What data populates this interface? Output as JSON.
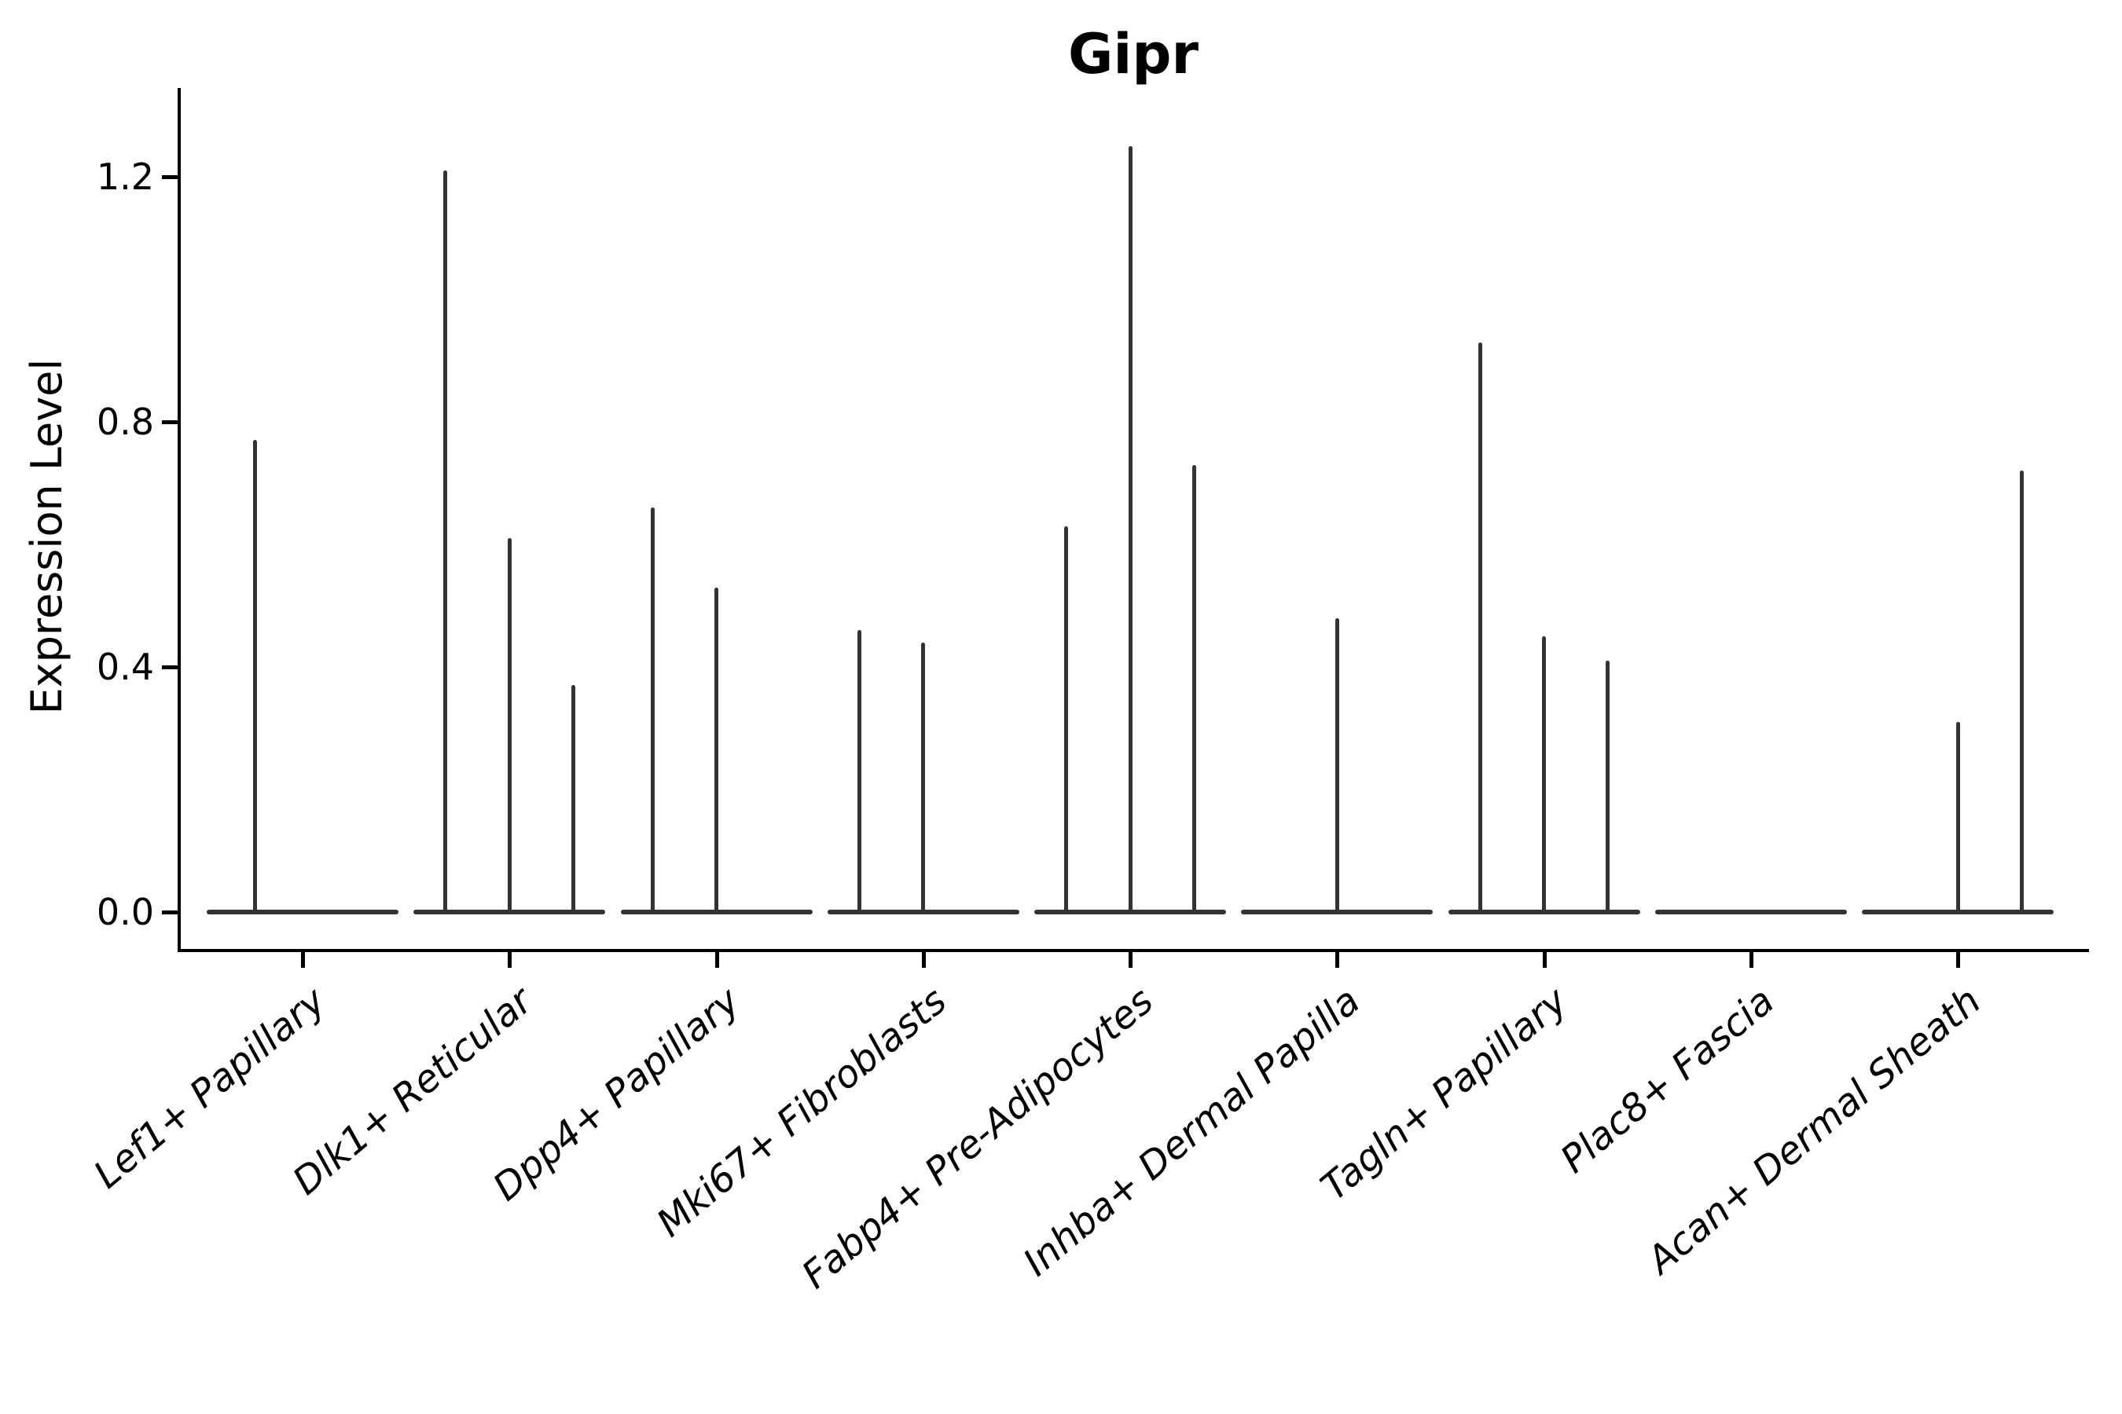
{
  "title": "Gipr",
  "ylabel": "Expression Level",
  "chart_data": {
    "type": "violin",
    "title": "Gipr",
    "xlabel": "",
    "ylabel": "Expression Level",
    "ylim": [
      0,
      1.35
    ],
    "yticks": [
      0.0,
      0.4,
      0.8,
      1.2
    ],
    "ytick_labels": [
      "0.0",
      "0.4",
      "0.8",
      "1.2"
    ],
    "grid": false,
    "legend_position": "none",
    "violin_color": "#333333",
    "axis_color": "#000000",
    "note": "Violins are collapsed to near-zero width (spikes). Each category holds grouped violins; violin_peaks give the max expression (spike top) of each violin, 0 = flat baseline violin.",
    "categories": [
      {
        "label": "Lef1+ Papillary",
        "violin_peaks": [
          0.77,
          0
        ]
      },
      {
        "label": "Dlk1+ Reticular",
        "violin_peaks": [
          1.21,
          0.61,
          0.37
        ]
      },
      {
        "label": "Dpp4+ Papillary",
        "violin_peaks": [
          0.66,
          0.53,
          0
        ]
      },
      {
        "label": "Mki67+ Fibroblasts",
        "violin_peaks": [
          0.46,
          0.44,
          0
        ]
      },
      {
        "label": "Fabp4+ Pre-Adipocytes",
        "violin_peaks": [
          0.63,
          1.25,
          0.73
        ]
      },
      {
        "label": "Inhba+ Dermal Papilla",
        "violin_peaks": [
          0,
          0.48,
          0
        ]
      },
      {
        "label": "Tagln+ Papillary",
        "violin_peaks": [
          0.93,
          0.45,
          0.41
        ]
      },
      {
        "label": "Plac8+ Fascia",
        "violin_peaks": [
          0,
          0,
          0
        ]
      },
      {
        "label": "Acan+ Dermal Sheath",
        "violin_peaks": [
          0,
          0.31,
          0.72
        ]
      }
    ]
  }
}
